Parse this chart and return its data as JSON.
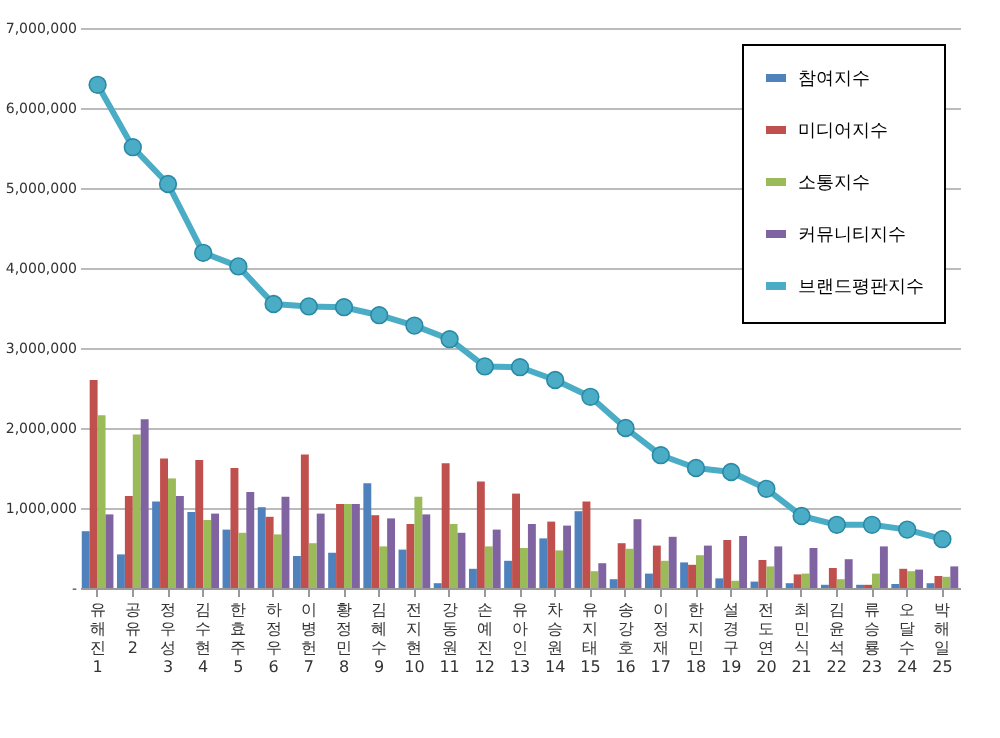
{
  "chart_data": {
    "type": "bar",
    "categories": [
      "유해진 1",
      "공유 2",
      "정우성 3",
      "김수현 4",
      "한효주 5",
      "하정우 6",
      "이병헌 7",
      "황정민 8",
      "김혜수 9",
      "전지현 10",
      "강동원 11",
      "손예진 12",
      "유아인 13",
      "차승원 14",
      "유지태 15",
      "송강호 16",
      "이정재 17",
      "한지민 18",
      "설경구 19",
      "전도연 20",
      "최민식 21",
      "김윤석 22",
      "류승룡 23",
      "오달수 24",
      "박해일 25"
    ],
    "series": [
      {
        "name": "참여지수",
        "color": "#4f81bd",
        "values": [
          710000,
          420000,
          1080000,
          950000,
          730000,
          1010000,
          400000,
          440000,
          1310000,
          480000,
          60000,
          240000,
          340000,
          620000,
          960000,
          110000,
          180000,
          320000,
          120000,
          80000,
          60000,
          40000,
          40000,
          50000,
          60000
        ]
      },
      {
        "name": "미디어지수",
        "color": "#c0504d",
        "values": [
          2600000,
          1150000,
          1620000,
          1600000,
          1500000,
          890000,
          1670000,
          1050000,
          910000,
          800000,
          1560000,
          1330000,
          1180000,
          830000,
          1080000,
          560000,
          530000,
          290000,
          600000,
          350000,
          170000,
          250000,
          40000,
          240000,
          150000
        ]
      },
      {
        "name": "소통지수",
        "color": "#9bbb59",
        "values": [
          2160000,
          1920000,
          1370000,
          850000,
          690000,
          670000,
          560000,
          1050000,
          520000,
          1140000,
          800000,
          520000,
          500000,
          470000,
          210000,
          490000,
          340000,
          410000,
          90000,
          270000,
          180000,
          110000,
          180000,
          210000,
          140000
        ]
      },
      {
        "name": "커뮤니티지수",
        "color": "#8064a2",
        "values": [
          920000,
          2110000,
          1150000,
          930000,
          1200000,
          1140000,
          930000,
          1050000,
          870000,
          920000,
          690000,
          730000,
          800000,
          780000,
          310000,
          860000,
          640000,
          530000,
          650000,
          520000,
          500000,
          360000,
          520000,
          230000,
          270000
        ]
      },
      {
        "name": "브랜드평판지수",
        "type": "line",
        "color": "#4bacc6",
        "values": [
          6290000,
          5510000,
          5050000,
          4190000,
          4020000,
          3550000,
          3520000,
          3510000,
          3410000,
          3280000,
          3110000,
          2770000,
          2760000,
          2600000,
          2390000,
          2000000,
          1660000,
          1500000,
          1450000,
          1240000,
          900000,
          790000,
          790000,
          730000,
          610000
        ]
      }
    ],
    "ylim": [
      0,
      7000000
    ],
    "yticks": [
      {
        "value": 0,
        "label": "-"
      },
      {
        "value": 1000000,
        "label": "1,000,000"
      },
      {
        "value": 2000000,
        "label": "2,000,000"
      },
      {
        "value": 3000000,
        "label": "3,000,000"
      },
      {
        "value": 4000000,
        "label": "4,000,000"
      },
      {
        "value": 5000000,
        "label": "5,000,000"
      },
      {
        "value": 6000000,
        "label": "6,000,000"
      },
      {
        "value": 7000000,
        "label": "7,000,000"
      }
    ],
    "grid": "y",
    "legend": "top right",
    "marker": "circle"
  }
}
